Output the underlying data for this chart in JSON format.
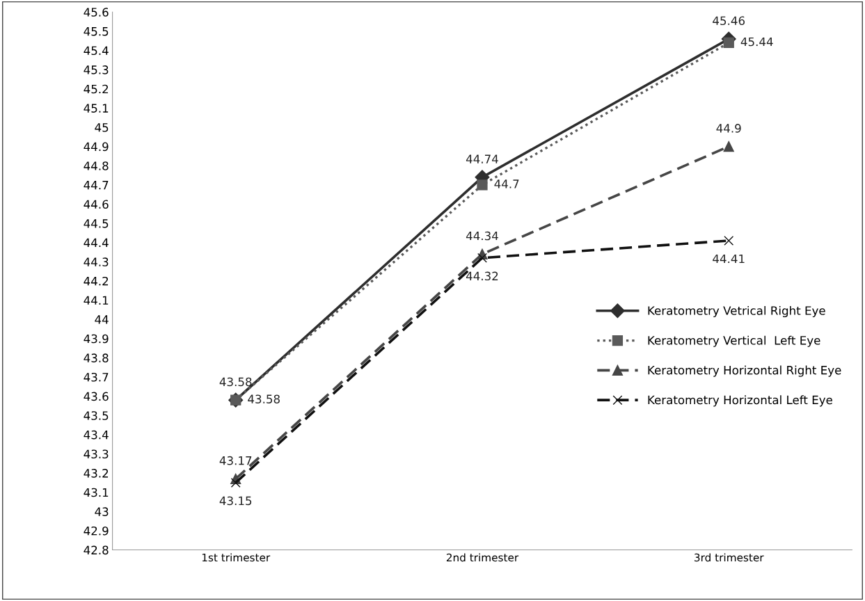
{
  "chart_data": {
    "type": "line",
    "categories": [
      "1st trimester",
      "2nd trimester",
      "3rd trimester"
    ],
    "series": [
      {
        "name": "Keratometry Vetrical Right Eye",
        "color": "#2e2e2e",
        "marker": "diamond",
        "line_style": "solid",
        "values": [
          43.58,
          44.74,
          45.46
        ]
      },
      {
        "name": "Keratometry Vertical  Left Eye",
        "color": "#5a5a5a",
        "marker": "square",
        "line_style": "dotted",
        "values": [
          43.58,
          44.7,
          45.44
        ]
      },
      {
        "name": "Keratometry Horizontal Right Eye",
        "color": "#464646",
        "marker": "triangle",
        "line_style": "dashed",
        "values": [
          43.17,
          44.34,
          44.9
        ]
      },
      {
        "name": "Keratometry Horizontal Left Eye",
        "color": "#111111",
        "marker": "cross",
        "line_style": "dashed",
        "values": [
          43.15,
          44.32,
          44.41
        ]
      }
    ],
    "ylim": [
      42.8,
      45.6
    ],
    "yticks": [
      42.8,
      42.9,
      43,
      43.1,
      43.2,
      43.3,
      43.4,
      43.5,
      43.6,
      43.7,
      43.8,
      43.9,
      44,
      44.1,
      44.2,
      44.3,
      44.4,
      44.5,
      44.6,
      44.7,
      44.8,
      44.9,
      45,
      45.1,
      45.2,
      45.3,
      45.4,
      45.5,
      45.6
    ],
    "data_labels": true,
    "grid": false,
    "legend": "right"
  }
}
